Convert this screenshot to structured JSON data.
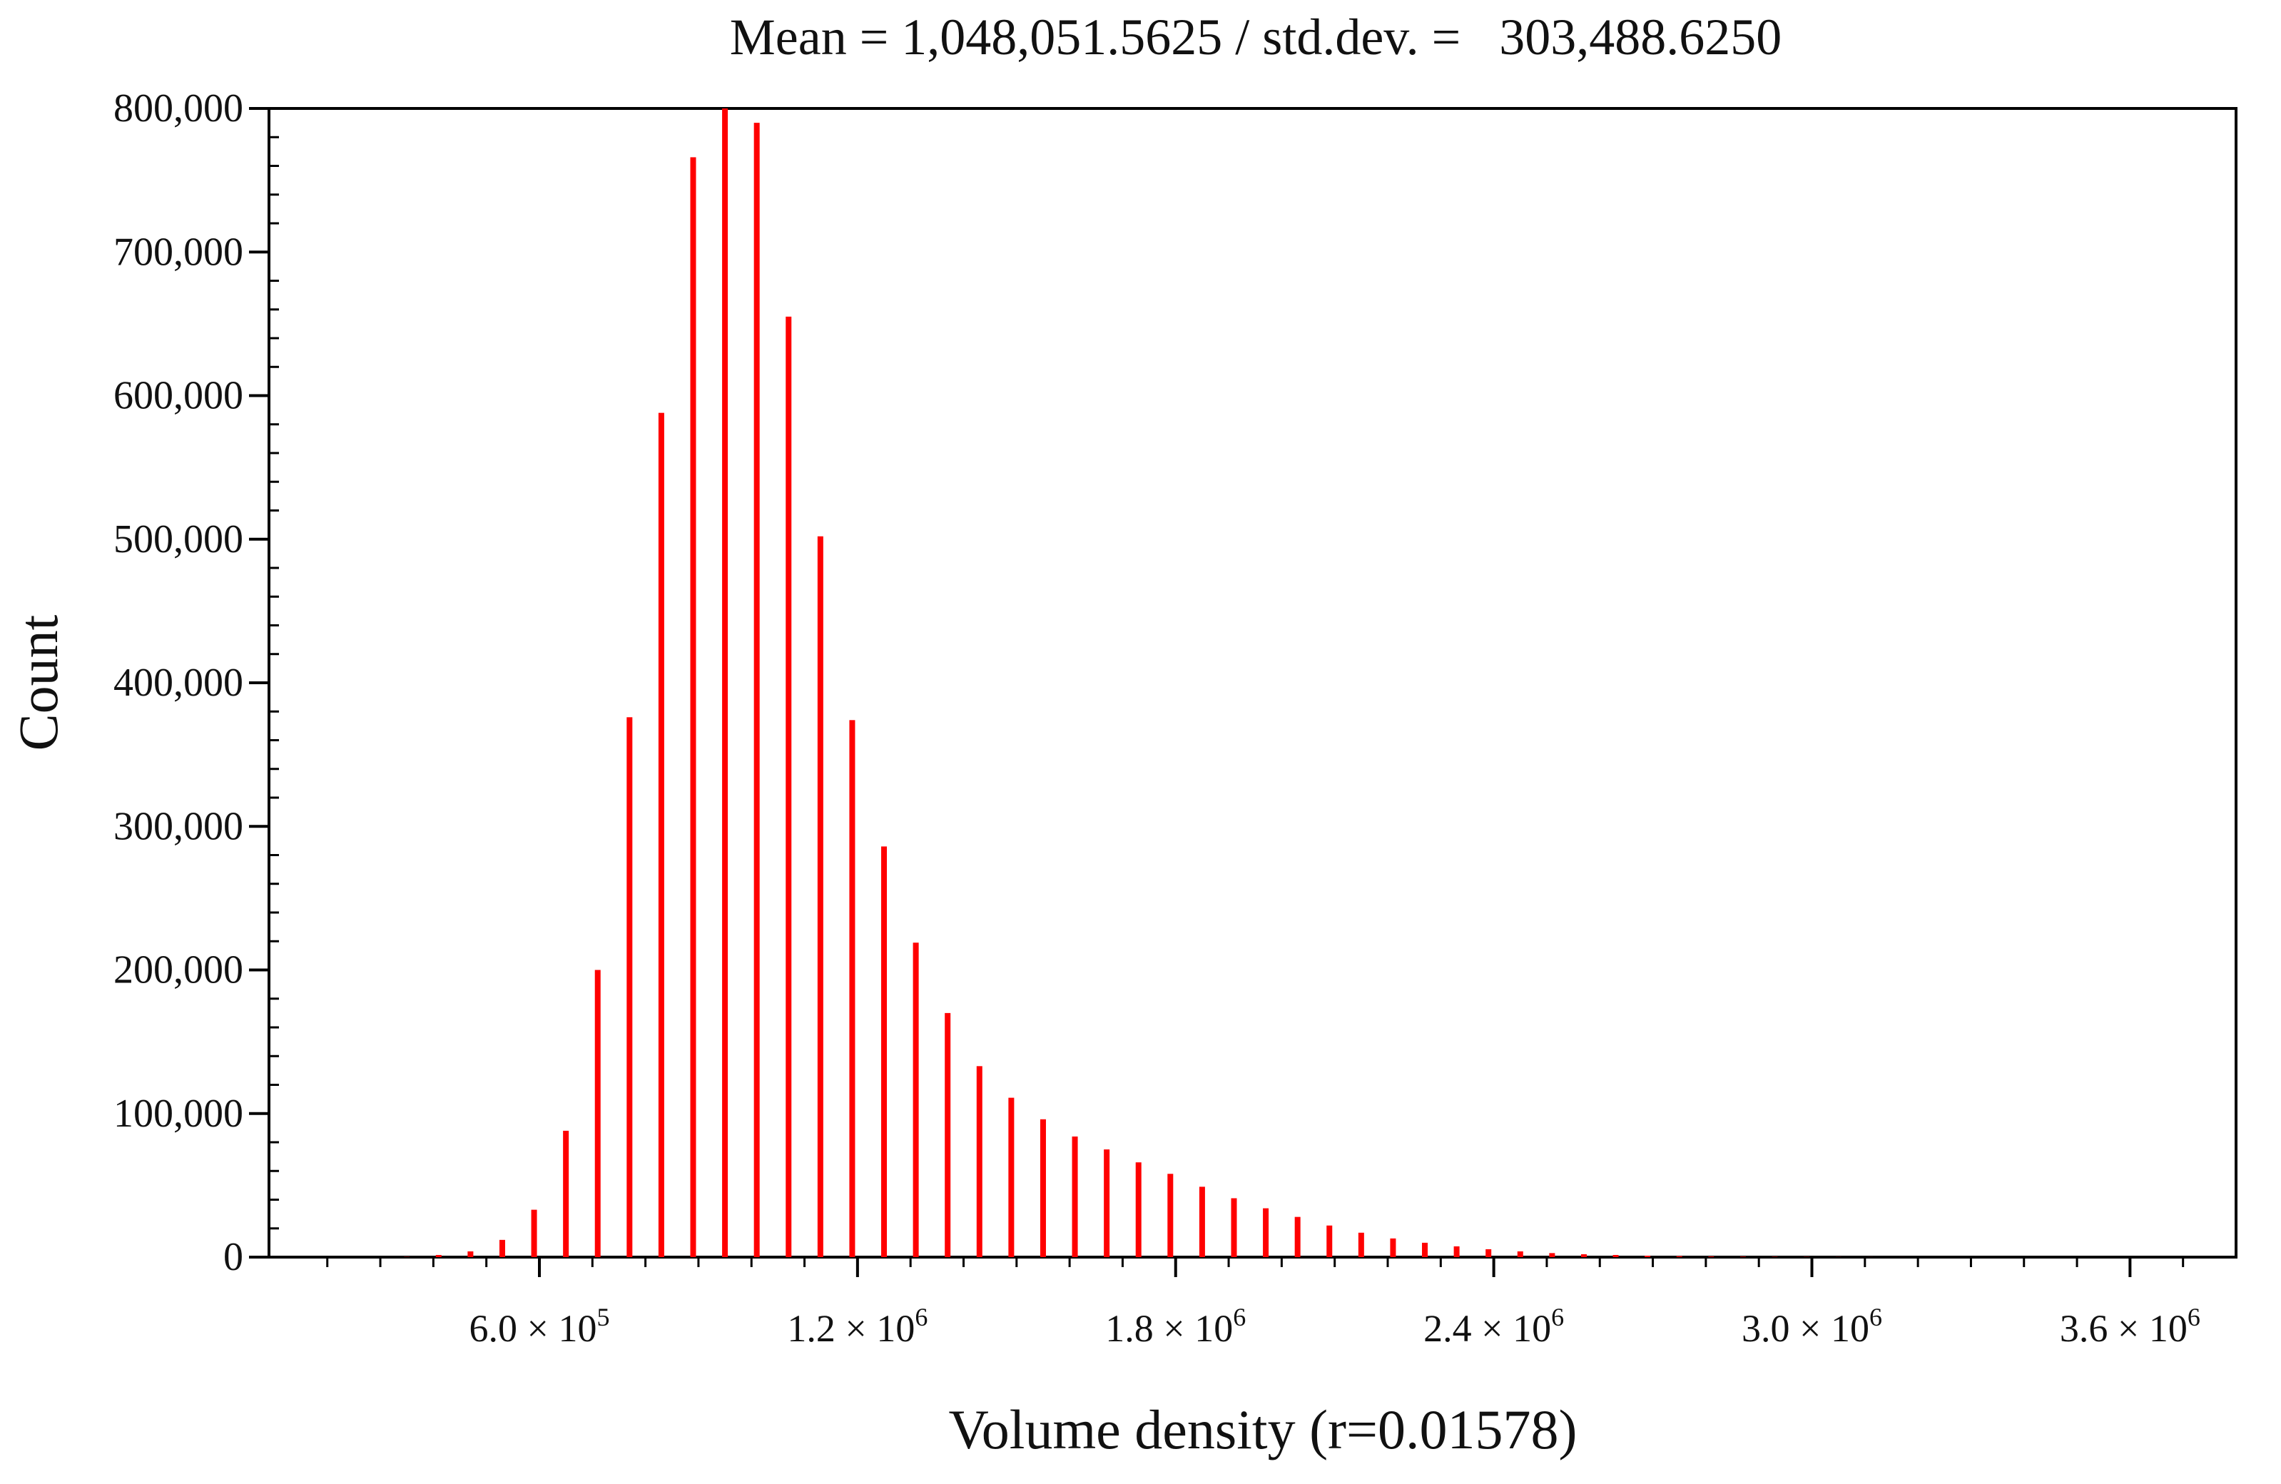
{
  "chart_data": {
    "type": "bar",
    "title": "Mean = 1,048,051.5625 / std.dev. =   303,488.6250",
    "xlabel": "Volume density (r=0.01578)",
    "ylabel": "Count",
    "xlim": [
      90000,
      3800000
    ],
    "ylim": [
      0,
      800000
    ],
    "yticks": [
      0,
      100000,
      200000,
      300000,
      400000,
      500000,
      600000,
      700000,
      800000
    ],
    "ytick_labels": [
      "0",
      "100,000",
      "200,000",
      "300,000",
      "400,000",
      "500,000",
      "600,000",
      "700,000",
      "800,000"
    ],
    "xticks": [
      {
        "value": 600000,
        "mantissa": "6.0",
        "times": "×",
        "base": "10",
        "exp": "5"
      },
      {
        "value": 1200000,
        "mantissa": "1.2",
        "times": "×",
        "base": "10",
        "exp": "6"
      },
      {
        "value": 1800000,
        "mantissa": "1.8",
        "times": "×",
        "base": "10",
        "exp": "6"
      },
      {
        "value": 2400000,
        "mantissa": "2.4",
        "times": "×",
        "base": "10",
        "exp": "6"
      },
      {
        "value": 3000000,
        "mantissa": "3.0",
        "times": "×",
        "base": "10",
        "exp": "6"
      },
      {
        "value": 3600000,
        "mantissa": "3.6",
        "times": "×",
        "base": "10",
        "exp": "6"
      }
    ],
    "x_minor_step": 100000,
    "bar_color": "#ff0000",
    "x": [
      350000,
      410000,
      470000,
      530000,
      590000,
      650000,
      710000,
      770000,
      830000,
      890000,
      950000,
      1010000,
      1070000,
      1130000,
      1190000,
      1250000,
      1310000,
      1370000,
      1430000,
      1490000,
      1550000,
      1610000,
      1670000,
      1730000,
      1790000,
      1850000,
      1910000,
      1970000,
      2030000,
      2090000,
      2150000,
      2210000,
      2270000,
      2330000,
      2390000,
      2450000,
      2510000,
      2570000,
      2630000,
      2690000,
      2750000,
      2810000,
      2870000,
      2930000,
      2990000,
      3050000,
      3110000,
      3170000,
      3230000,
      3290000,
      3350000,
      3410000,
      3470000,
      3530000,
      3590000,
      3650000,
      3710000
    ],
    "values": [
      200,
      1500,
      4000,
      12000,
      33000,
      88000,
      200000,
      376000,
      588000,
      766000,
      800000,
      790000,
      655000,
      502000,
      374000,
      286000,
      219000,
      170000,
      133000,
      111000,
      96000,
      84000,
      75000,
      66000,
      58000,
      49000,
      41000,
      34000,
      28000,
      22000,
      17000,
      13000,
      10000,
      7500,
      5500,
      4000,
      2800,
      2000,
      1500,
      1000,
      700,
      500,
      350,
      250,
      180,
      120,
      80,
      60,
      40,
      30,
      20,
      15,
      10,
      8,
      6,
      4,
      3
    ]
  }
}
